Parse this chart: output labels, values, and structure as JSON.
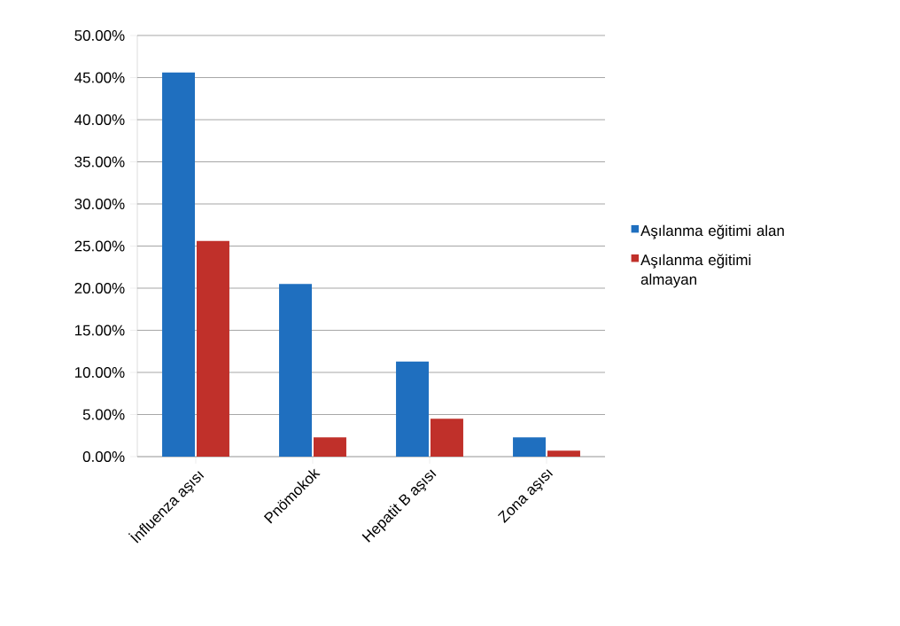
{
  "chart_data": {
    "type": "bar",
    "categories": [
      "İnfluenza aşısı",
      "Pnömokok",
      "Hepatit B aşısı",
      "Zona aşısı"
    ],
    "series": [
      {
        "name": "Aşılanma eğitimi alan",
        "color": "#1f6fbf",
        "values": [
          45.6,
          20.5,
          11.3,
          2.3
        ]
      },
      {
        "name": "Aşılanma eğitimi almayan",
        "color": "#c0302a",
        "values": [
          25.6,
          2.3,
          4.5,
          0.7
        ]
      }
    ],
    "ylim": [
      0,
      50
    ],
    "yticks": [
      {
        "value": 0,
        "label": "0.00%"
      },
      {
        "value": 5,
        "label": "5.00%"
      },
      {
        "value": 10,
        "label": "10.00%"
      },
      {
        "value": 15,
        "label": "15.00%"
      },
      {
        "value": 20,
        "label": "20.00%"
      },
      {
        "value": 25,
        "label": "25.00%"
      },
      {
        "value": 30,
        "label": "30.00%"
      },
      {
        "value": 35,
        "label": "35.00%"
      },
      {
        "value": 40,
        "label": "40.00%"
      },
      {
        "value": 45,
        "label": "45.00%"
      },
      {
        "value": 50,
        "label": "50.00%"
      }
    ],
    "grid": "y",
    "legend": "right"
  }
}
